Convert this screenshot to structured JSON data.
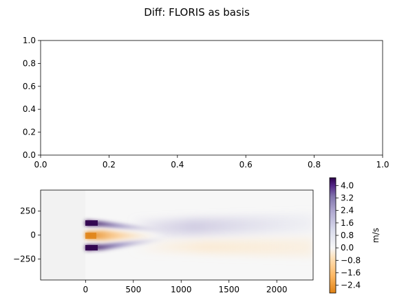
{
  "figure": {
    "suptitle": "Diff: FLORIS as basis"
  },
  "chart_data": [
    {
      "type": "scatter",
      "title": "",
      "xlabel": "",
      "ylabel": "",
      "xlim": [
        0.0,
        1.0
      ],
      "ylim": [
        0.0,
        1.0
      ],
      "xticks": [
        "0.0",
        "0.2",
        "0.4",
        "0.6",
        "0.8",
        "1.0"
      ],
      "yticks": [
        "0.0",
        "0.2",
        "0.4",
        "0.6",
        "0.8",
        "1.0"
      ],
      "series": []
    },
    {
      "type": "heatmap",
      "title": "",
      "xlabel": "",
      "ylabel": "",
      "xlim": [
        -470,
        2380
      ],
      "ylim": [
        -470,
        470
      ],
      "xticks": [
        "0",
        "500",
        "1000",
        "1500",
        "2000"
      ],
      "yticks": [
        "250",
        "0",
        "−250"
      ],
      "colorbar": {
        "label": "m/s",
        "range": [
          -2.9,
          4.5
        ],
        "ticks": [
          "4.0",
          "3.2",
          "2.4",
          "1.6",
          "0.8",
          "0.0",
          "−0.8",
          "−1.6",
          "−2.4"
        ],
        "colormap": [
          "#e08214",
          "#fdb863",
          "#fee0b6",
          "#f7f7f7",
          "#d8daeb",
          "#b2abd2",
          "#8073ac",
          "#542788",
          "#2d004b"
        ]
      }
    }
  ]
}
